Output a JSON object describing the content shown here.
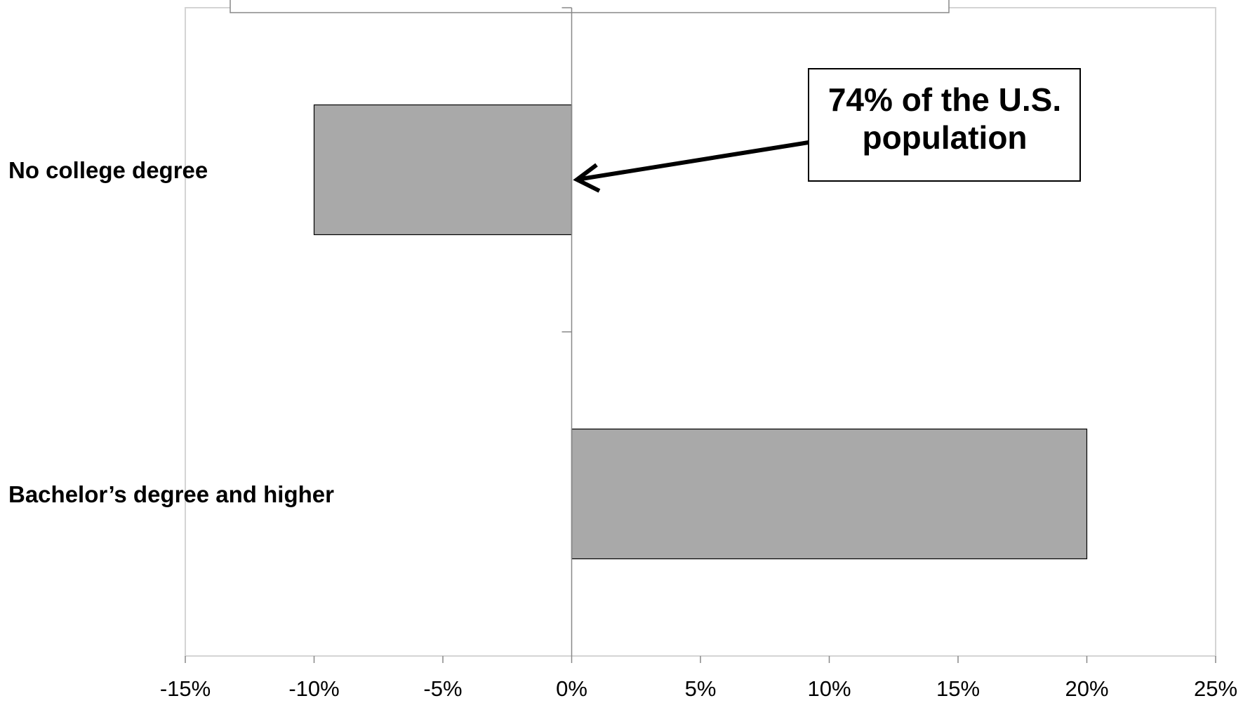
{
  "chart_data": {
    "type": "bar",
    "orientation": "horizontal",
    "categories": [
      "No college degree",
      "Bachelor’s degree and higher"
    ],
    "values": [
      -10,
      20
    ],
    "xlim": [
      -15,
      25
    ],
    "xticks": [
      -15,
      -10,
      -5,
      0,
      5,
      10,
      15,
      20,
      25
    ],
    "xtick_labels": [
      "-15%",
      "-10%",
      "-5%",
      "0%",
      "5%",
      "10%",
      "15%",
      "20%",
      "25%"
    ],
    "bar_color": "#a9a9a9",
    "annotation": {
      "lines": [
        "74% of the U.S.",
        "population"
      ],
      "points_to": "No college degree"
    },
    "grid": false
  }
}
